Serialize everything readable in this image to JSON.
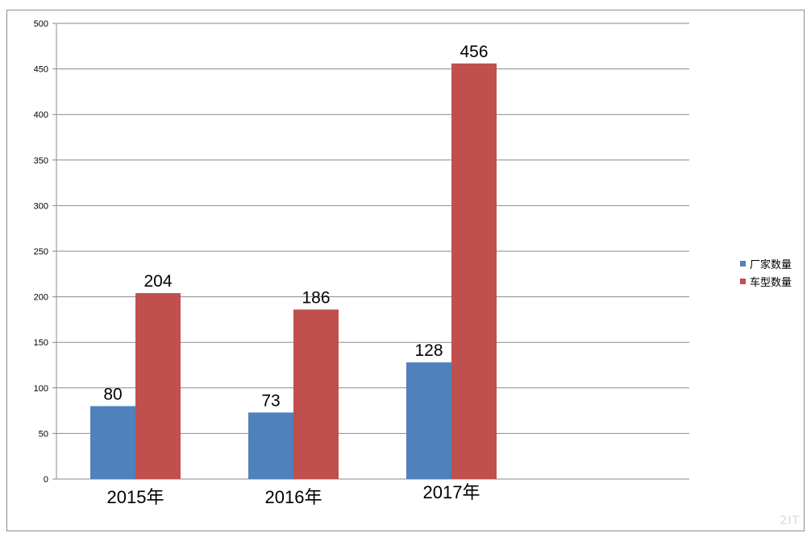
{
  "chart_data": {
    "type": "bar",
    "title": "",
    "xlabel": "",
    "ylabel": "",
    "categories": [
      "2015年",
      "2016年",
      "2017年"
    ],
    "series": [
      {
        "name": "厂家数量",
        "values": [
          80,
          73,
          128
        ],
        "color": "#4f81bd"
      },
      {
        "name": "车型数量",
        "values": [
          204,
          186,
          456
        ],
        "color": "#c0504d"
      }
    ],
    "ylim": [
      0,
      500
    ],
    "yticks": [
      0,
      50,
      100,
      150,
      200,
      250,
      300,
      350,
      400,
      450,
      500
    ],
    "grid": true,
    "legend_position": "right"
  },
  "watermark": "2IT"
}
